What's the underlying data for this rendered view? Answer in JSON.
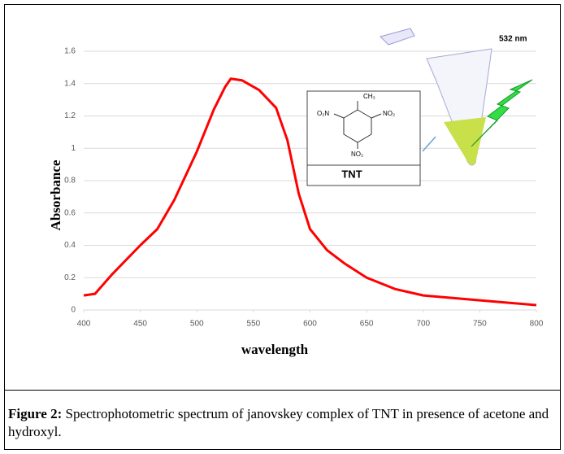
{
  "chart_data": {
    "type": "line",
    "x_label": "wavelength",
    "y_label": "Absorbance",
    "series": [
      {
        "name": "Absorbance",
        "color": "#ff0000",
        "x": [
          400,
          410,
          425,
          450,
          465,
          480,
          500,
          515,
          525,
          530,
          540,
          555,
          570,
          580,
          590,
          600,
          615,
          630,
          650,
          675,
          700,
          750,
          800
        ],
        "values": [
          0.09,
          0.1,
          0.22,
          0.4,
          0.5,
          0.68,
          0.98,
          1.24,
          1.38,
          1.43,
          1.42,
          1.36,
          1.25,
          1.05,
          0.72,
          0.5,
          0.37,
          0.29,
          0.2,
          0.13,
          0.09,
          0.06,
          0.03
        ]
      }
    ],
    "xlim": [
      400,
      800
    ],
    "xticks": [
      400,
      450,
      500,
      550,
      600,
      650,
      700,
      750,
      800
    ],
    "ylim": [
      0,
      1.6
    ],
    "yticks": [
      0,
      0.2,
      0.4,
      0.6,
      0.8,
      1,
      1.2,
      1.4,
      1.6
    ],
    "grid": true,
    "inset": {
      "label": "TNT",
      "groups": [
        "CH₃",
        "O₂N",
        "NO₂",
        "NO₂"
      ],
      "wavelength_label": "532 nm"
    }
  },
  "caption": {
    "label": "Figure 2:",
    "text": " Spectrophotometric spectrum of janovskey complex of TNT in presence of acetone and hydroxyl."
  }
}
